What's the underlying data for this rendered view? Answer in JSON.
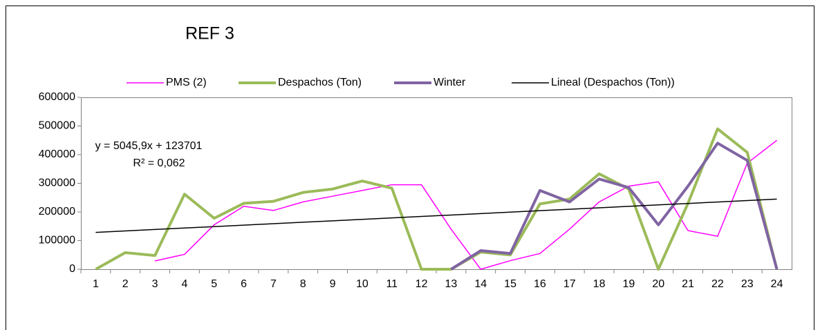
{
  "chart_data": {
    "type": "line",
    "title": "REF 3",
    "annotations": [
      "y = 5045,9x + 123701",
      "R² = 0,062"
    ],
    "legend": "top",
    "grid": false,
    "categories": [
      "1",
      "2",
      "3",
      "4",
      "5",
      "6",
      "7",
      "8",
      "9",
      "10",
      "11",
      "12",
      "13",
      "14",
      "15",
      "16",
      "17",
      "18",
      "19",
      "20",
      "21",
      "22",
      "23",
      "24"
    ],
    "ylim": [
      0,
      600000
    ],
    "yticks": [
      0,
      100000,
      200000,
      300000,
      400000,
      500000,
      600000
    ],
    "series": [
      {
        "name": "PMS (2)",
        "color": "#ff00ff",
        "width": 1.5,
        "values": [
          null,
          null,
          29000,
          52000,
          155000,
          220000,
          205000,
          235000,
          255000,
          275000,
          295000,
          295000,
          140000,
          0,
          30000,
          55000,
          140000,
          235000,
          290000,
          305000,
          135000,
          115000,
          370000,
          450000
        ]
      },
      {
        "name": "Despachos (Ton)",
        "color": "#9bbb59",
        "width": 4,
        "values": [
          0,
          58000,
          48000,
          262000,
          178000,
          230000,
          237000,
          268000,
          280000,
          308000,
          283000,
          0,
          0,
          60000,
          50000,
          228000,
          245000,
          333000,
          280000,
          0,
          230000,
          490000,
          408000,
          0
        ]
      },
      {
        "name": "Winter",
        "color": "#8064a2",
        "width": 4,
        "values": [
          null,
          null,
          null,
          null,
          null,
          null,
          null,
          null,
          null,
          null,
          null,
          null,
          0,
          65000,
          55000,
          275000,
          235000,
          315000,
          285000,
          155000,
          290000,
          440000,
          380000,
          0
        ]
      },
      {
        "name": "Lineal (Despachos (Ton))",
        "color": "#000000",
        "width": 1.5,
        "values": [
          128747,
          133793,
          138839,
          143885,
          148931,
          153976,
          159022,
          164068,
          169114,
          174160,
          179206,
          184252,
          189298,
          194344,
          199390,
          204435,
          209481,
          214527,
          219573,
          224619,
          229665,
          234711,
          239757,
          244803
        ]
      }
    ]
  }
}
